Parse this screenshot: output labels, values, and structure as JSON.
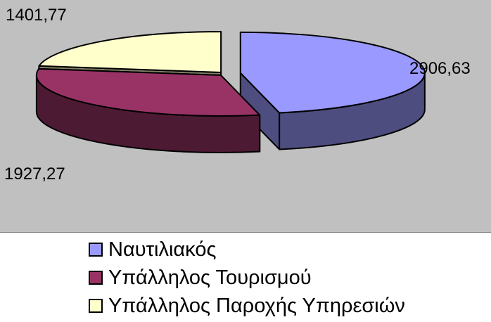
{
  "chart_data": {
    "type": "pie",
    "title": "",
    "categories": [
      "Ναυτιλιακός",
      "Υπάλληλος Τουρισμού",
      "Υπάλληλος Παροχής Υπηρεσιών"
    ],
    "values": [
      2906.63,
      1927.27,
      1401.77
    ],
    "data_labels": [
      "2906,63",
      "1927,27",
      "1401,77"
    ],
    "colors": [
      "#9999ff",
      "#993366",
      "#ffffcc"
    ],
    "style": "3d-exploded",
    "legend_position": "bottom",
    "background": "#c0c0c0"
  }
}
